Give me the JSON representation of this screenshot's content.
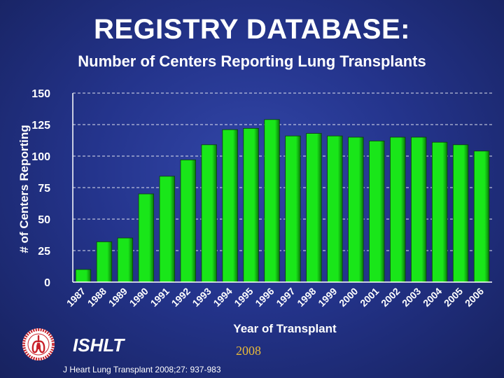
{
  "header": {
    "title": "REGISTRY DATABASE:",
    "subtitle": "Number of Centers Reporting Lung Transplants"
  },
  "footer": {
    "org": "ISHLT",
    "year": "2008",
    "citation": "J Heart Lung Transplant 2008;27: 937-983"
  },
  "colors": {
    "bar": "#19e619",
    "bar_dark": "#0a7a0a",
    "background": "#24348c",
    "grid": "#ffffff",
    "year_text": "#e8b93a",
    "logo_red": "#c8202a"
  },
  "chart_data": {
    "type": "bar",
    "categories": [
      "1987",
      "1988",
      "1989",
      "1990",
      "1991",
      "1992",
      "1993",
      "1994",
      "1995",
      "1996",
      "1997",
      "1998",
      "1999",
      "2000",
      "2001",
      "2002",
      "2003",
      "2004",
      "2005",
      "2006"
    ],
    "values": [
      10,
      32,
      35,
      70,
      84,
      97,
      109,
      121,
      122,
      129,
      116,
      118,
      116,
      115,
      112,
      115,
      115,
      111,
      109,
      104
    ],
    "xlabel": "Year of Transplant",
    "ylabel": "# of Centers Reporting",
    "ylim": [
      0,
      150
    ],
    "yticks": [
      0,
      25,
      50,
      75,
      100,
      125,
      150
    ],
    "grid": true
  }
}
